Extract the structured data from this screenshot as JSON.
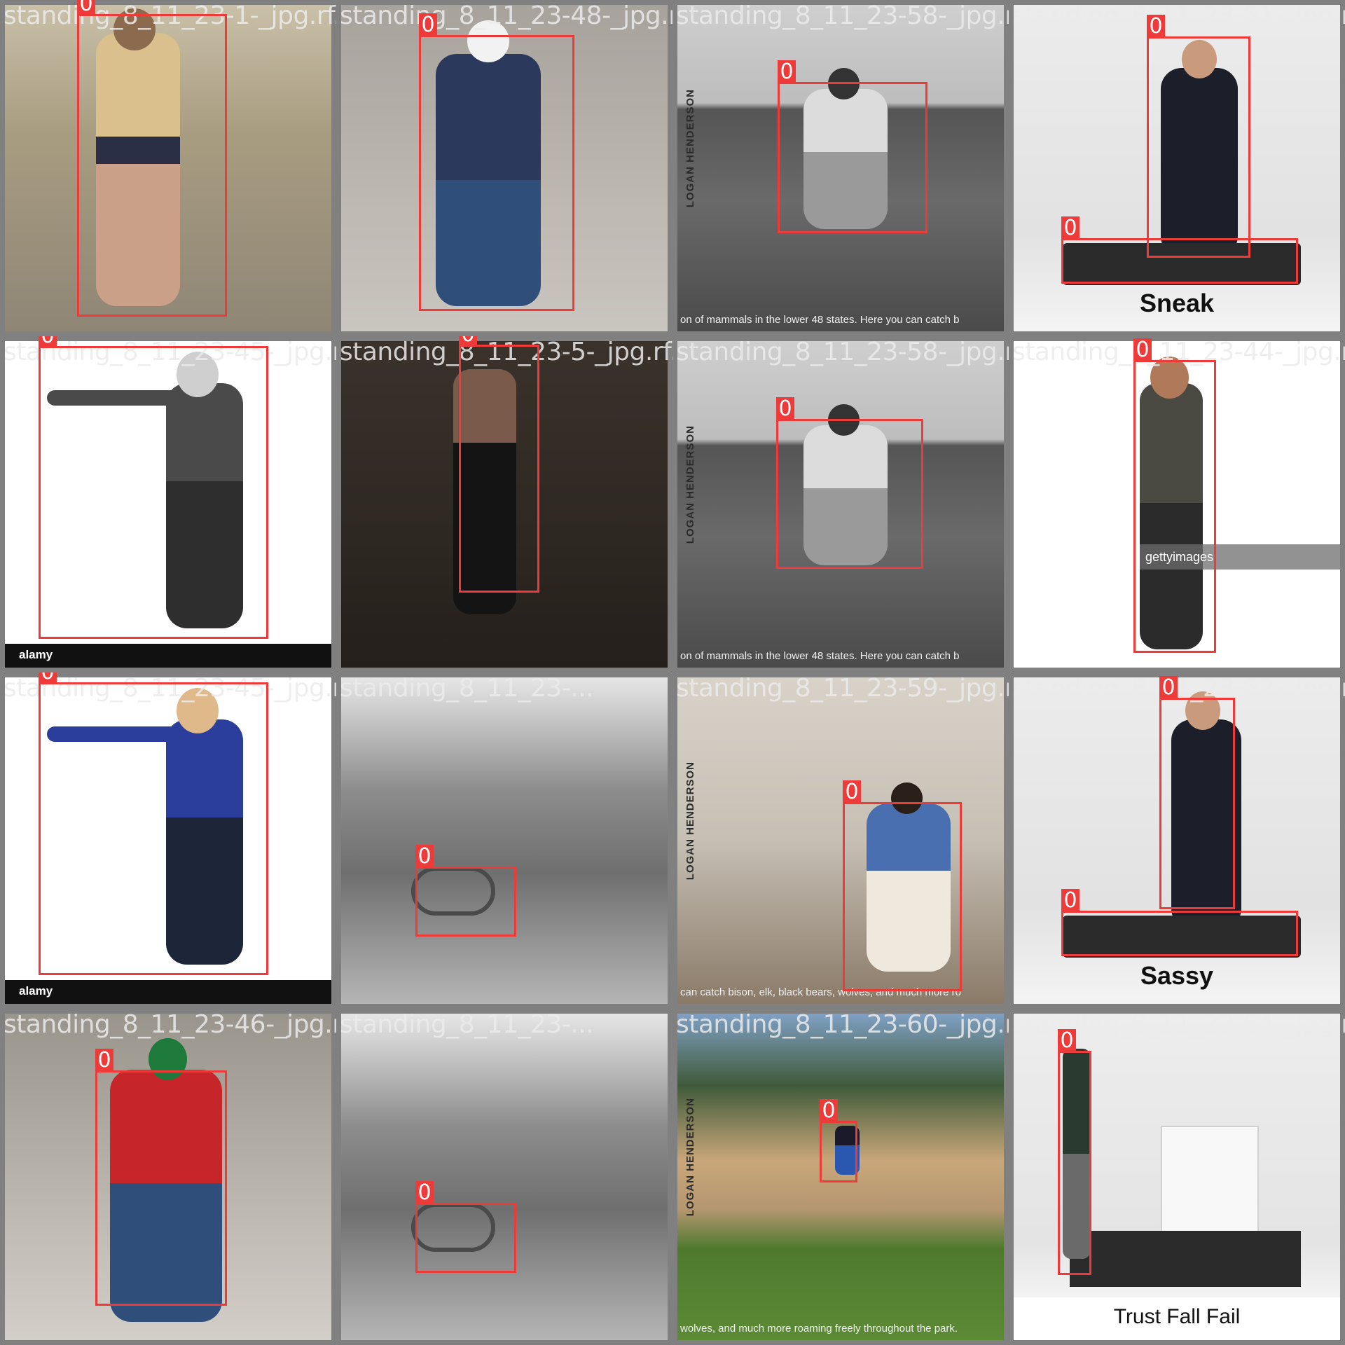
{
  "tiles": [
    {
      "filename": "standing_8_11_23-1-_jpg.rf.8...",
      "boxes": [
        {
          "label": "0"
        }
      ]
    },
    {
      "filename": "standing_8_11_23-48-_jpg.rf.d7f2a8754...",
      "boxes": [
        {
          "label": "0"
        }
      ]
    },
    {
      "filename": "standing_8_11_23-58-_jpg.rf.4099c18829...",
      "boxes": [
        {
          "label": "0"
        }
      ]
    },
    {
      "filename": "standing_8_11_23-61-_jpg.rf...",
      "boxes": [
        {
          "label": "0"
        },
        {
          "label": "0"
        }
      ],
      "caption": "Sneak"
    },
    {
      "filename": "standing_8_11_23-45-_jpg.rf...",
      "boxes": [
        {
          "label": "0"
        }
      ],
      "brand": "alamy"
    },
    {
      "filename": "standing_8_11_23-5-_jpg.rf.a372ffd0637c...",
      "boxes": [
        {
          "label": "0"
        }
      ]
    },
    {
      "filename": "standing_8_11_23-58-_jpg.rf.2b5dd038e584...",
      "boxes": [
        {
          "label": "0"
        }
      ]
    },
    {
      "filename": "standing_8_11_23-44-_jpg.rf...",
      "boxes": [
        {
          "label": "0"
        }
      ],
      "watermark": "gettyimages"
    },
    {
      "filename": "standing_8_11_23-45-_jpg.rf...",
      "boxes": [
        {
          "label": "0"
        }
      ],
      "brand": "alamy"
    },
    {
      "filename": "standing_8_11_23-...",
      "boxes": [
        {
          "label": "0"
        }
      ]
    },
    {
      "filename": "standing_8_11_23-59-_jpg.rf.3bd93182214...",
      "boxes": [
        {
          "label": "0"
        }
      ]
    },
    {
      "filename": "standing_8_11_23-62-_jpg.rf...",
      "boxes": [
        {
          "label": "0"
        },
        {
          "label": "0"
        }
      ],
      "caption": "Sassy"
    },
    {
      "filename": "standing_8_11_23-46-_jpg.rf...",
      "boxes": [
        {
          "label": "0"
        }
      ]
    },
    {
      "filename": "standing_8_11_23-...",
      "boxes": [
        {
          "label": "0"
        }
      ]
    },
    {
      "filename": "standing_8_11_23-60-_jpg.rf.7a0bb98ea8...",
      "boxes": [
        {
          "label": "0"
        }
      ]
    },
    {
      "filename": "standing_8_11_23-64-_jpg.rf...",
      "boxes": [
        {
          "label": "0"
        }
      ],
      "caption": "Trust Fall Fail"
    }
  ],
  "overlays": {
    "subtitle_1": "on of mammals in the lower 48 states. Here you can catch b",
    "subtitle_2": "can catch bison, elk, black bears, wolves, and much more ro",
    "subtitle_3": "wolves, and much more roaming freely throughout the park.",
    "vertical_credit": "LOGAN HENDERSON"
  },
  "colors": {
    "box": "#ef3a3a",
    "background": "#808080"
  }
}
